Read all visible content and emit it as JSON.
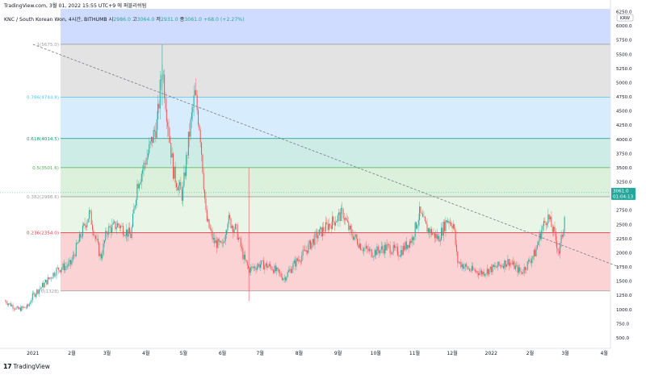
{
  "header": {
    "source_line": "TradingView.com, 3월 01, 2022 15:55 UTC+9 에 퍼블리쉬됨",
    "symbol_line": "KNC / South Korean Won, 4시간, BITHUMB",
    "ohlc": [
      {
        "label": "시",
        "value": "2986.0"
      },
      {
        "label": "고",
        "value": "3064.0"
      },
      {
        "label": "저",
        "value": "2931.0"
      },
      {
        "label": "종",
        "value": "3061.0"
      }
    ],
    "change": "+68.0 (+2.27%)"
  },
  "footer": {
    "logo_text": "TradingView"
  },
  "colors": {
    "up": "#26a69a",
    "down": "#ef5350",
    "fib_blue": "#2962ff",
    "fib_grey": "#9e9e9e",
    "fib_lightblue": "#4fc3f7",
    "fib_teal": "#089981",
    "fib_green": "#4caf50",
    "fib_red": "#f23645",
    "price_tag": "#26a69a"
  },
  "chart_data": {
    "type": "candlestick",
    "currency_label": "KRW",
    "y_axis_ticks": [
      6250,
      6000,
      5750,
      5500,
      5250,
      5000,
      4750,
      4500,
      4250,
      4000,
      3750,
      3500,
      3250,
      3000,
      2750,
      2500,
      2250,
      2000,
      1750,
      1500,
      1250,
      1000,
      750,
      500
    ],
    "y_axis_top_label": "6250.0",
    "ylim": [
      300,
      6300
    ],
    "x_axis_ticks": [
      "2021",
      "2월",
      "3월",
      "4월",
      "5월",
      "6월",
      "7월",
      "8월",
      "9월",
      "10월",
      "11월",
      "12월",
      "2022",
      "2월",
      "3월",
      "4월"
    ],
    "last_price": {
      "value": "3061.0",
      "countdown": "01:04:13"
    },
    "fibonacci_levels": [
      {
        "ratio": 1,
        "price": 5675.0,
        "label": "1(5675.0)"
      },
      {
        "ratio": 0.786,
        "price": 4744.8,
        "label": "0.786(4744.8)"
      },
      {
        "ratio": 0.618,
        "price": 4014.5,
        "label": "0.618(4014.5)"
      },
      {
        "ratio": 0.5,
        "price": 3501.6,
        "label": "0.5(3501.6)"
      },
      {
        "ratio": 0.382,
        "price": 2988.6,
        "label": "0.382(2988.6)"
      },
      {
        "ratio": 0.236,
        "price": 2354.0,
        "label": "0.236(2354.0)"
      },
      {
        "ratio": 0,
        "price": 1328,
        "label": "0(1328)"
      }
    ],
    "trendline": {
      "from": {
        "x": "2021-01-01",
        "y": 5675
      },
      "to": {
        "x": "2022-04-13",
        "y": 1750
      }
    },
    "price_path": [
      [
        "2020-12-10",
        1150
      ],
      [
        "2020-12-20",
        1000
      ],
      [
        "2020-12-28",
        1050
      ],
      [
        "2021-01-01",
        1250
      ],
      [
        "2021-01-10",
        1450
      ],
      [
        "2021-01-20",
        1700
      ],
      [
        "2021-01-31",
        1800
      ],
      [
        "2021-02-08",
        2300
      ],
      [
        "2021-02-15",
        2700
      ],
      [
        "2021-02-24",
        1900
      ],
      [
        "2021-03-01",
        2400
      ],
      [
        "2021-03-10",
        2500
      ],
      [
        "2021-03-20",
        2300
      ],
      [
        "2021-03-25",
        3200
      ],
      [
        "2021-04-02",
        3700
      ],
      [
        "2021-04-10",
        4300
      ],
      [
        "2021-04-14",
        5300
      ],
      [
        "2021-04-18",
        4400
      ],
      [
        "2021-04-23",
        3400
      ],
      [
        "2021-04-30",
        3000
      ],
      [
        "2021-05-05",
        4000
      ],
      [
        "2021-05-10",
        4800
      ],
      [
        "2021-05-14",
        4200
      ],
      [
        "2021-05-19",
        2600
      ],
      [
        "2021-05-25",
        2200
      ],
      [
        "2021-06-01",
        2100
      ],
      [
        "2021-06-05",
        2600
      ],
      [
        "2021-06-12",
        2400
      ],
      [
        "2021-06-18",
        1900
      ],
      [
        "2021-06-22",
        1700
      ],
      [
        "2021-07-01",
        1800
      ],
      [
        "2021-07-10",
        1750
      ],
      [
        "2021-07-20",
        1550
      ],
      [
        "2021-07-28",
        1800
      ],
      [
        "2021-08-05",
        2000
      ],
      [
        "2021-08-15",
        2300
      ],
      [
        "2021-08-25",
        2500
      ],
      [
        "2021-09-05",
        2700
      ],
      [
        "2021-09-10",
        2400
      ],
      [
        "2021-09-20",
        2100
      ],
      [
        "2021-09-28",
        2000
      ],
      [
        "2021-10-10",
        2100
      ],
      [
        "2021-10-20",
        2000
      ],
      [
        "2021-10-30",
        2250
      ],
      [
        "2021-11-05",
        2700
      ],
      [
        "2021-11-10",
        2450
      ],
      [
        "2021-11-20",
        2250
      ],
      [
        "2021-11-27",
        2600
      ],
      [
        "2021-12-02",
        2500
      ],
      [
        "2021-12-05",
        1850
      ],
      [
        "2021-12-15",
        1700
      ],
      [
        "2021-12-25",
        1650
      ],
      [
        "2022-01-05",
        1750
      ],
      [
        "2022-01-15",
        1850
      ],
      [
        "2022-01-25",
        1650
      ],
      [
        "2022-02-05",
        2000
      ],
      [
        "2022-02-10",
        2400
      ],
      [
        "2022-02-15",
        2650
      ],
      [
        "2022-02-20",
        2350
      ],
      [
        "2022-02-24",
        2000
      ],
      [
        "2022-02-28",
        2500
      ],
      [
        "2022-03-01",
        3061
      ]
    ]
  }
}
